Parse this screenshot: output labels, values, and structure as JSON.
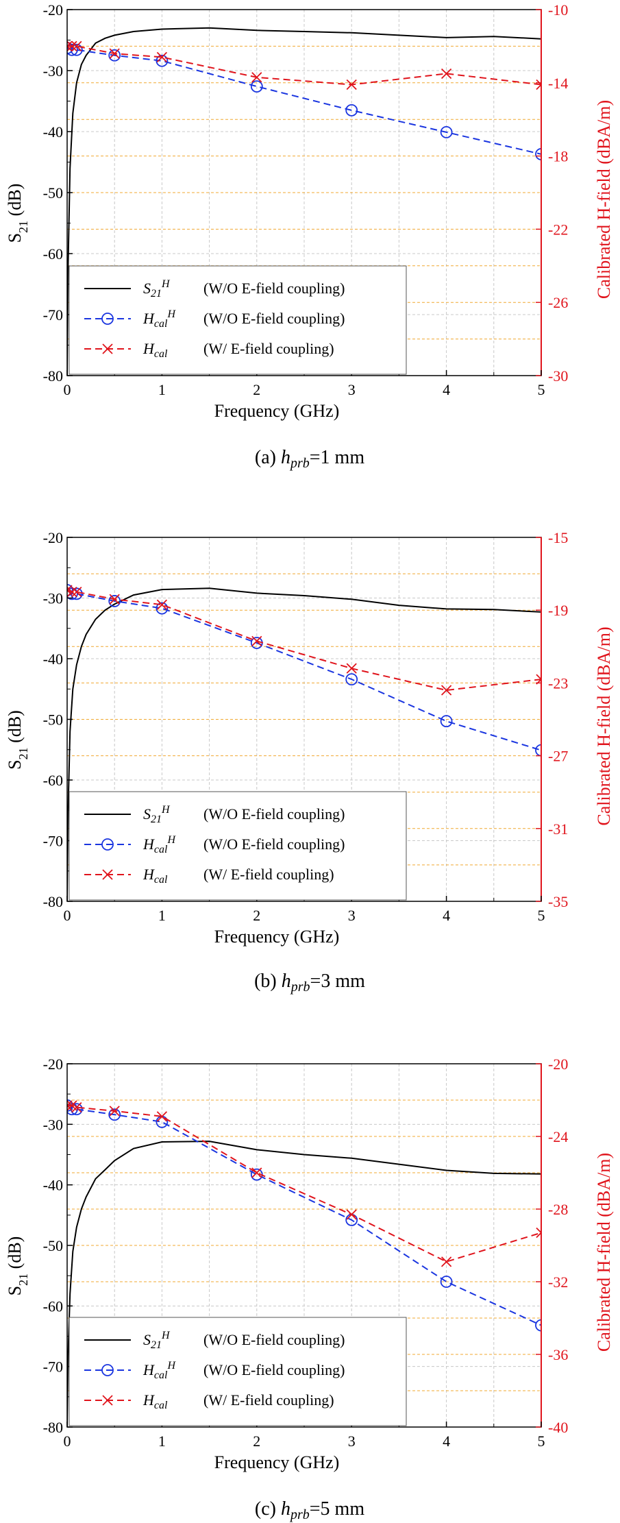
{
  "figure": {
    "axis_x_label": "Frequency (GHz)",
    "axis_y_left_label": "S",
    "axis_y_left_label_sub": "21",
    "axis_y_left_label_unit": " (dB)",
    "axis_y_right_label": "Calibrated H-field (dBA/m)",
    "legend": [
      {
        "sym": "S",
        "sub": "21",
        "sup": "H",
        "desc": "(W/O E-field coupling)",
        "style": "solid",
        "color": "#000000"
      },
      {
        "sym": "H",
        "sub": "cal",
        "sup": "H",
        "desc": "(W/O E-field coupling)",
        "style": "dashed-circle",
        "color": "#1a35e0"
      },
      {
        "sym": "H",
        "sub": "cal",
        "sup": "",
        "desc": "(W/   E-field coupling)",
        "style": "dashed-cross",
        "color": "#e0141c"
      }
    ],
    "colors": {
      "s21": "#000000",
      "hcal_wo": "#1a35e0",
      "hcal_w": "#e0141c",
      "right_axis": "#e0141c",
      "grid": "#c8c8c8",
      "right_grid": "#f0a830"
    }
  },
  "chart_data": [
    {
      "type": "line",
      "caption_prefix": "(a)",
      "caption_var": "h",
      "caption_sub": "prb",
      "caption_value": "=1  mm",
      "x_ticks": [
        "0",
        "1",
        "2",
        "3",
        "4",
        "5"
      ],
      "xlim": [
        0,
        5
      ],
      "ylim_left": [
        -80,
        -20
      ],
      "y_ticks_left": [
        "-20",
        "-30",
        "-40",
        "-50",
        "-60",
        "-70",
        "-80"
      ],
      "ylim_right": [
        -30,
        -10
      ],
      "y_ticks_right": [
        "-10",
        "-14",
        "-18",
        "-22",
        "-26",
        "-30"
      ],
      "series": [
        {
          "name": "S21H (W/O E-field coupling)",
          "axis": "left",
          "x": [
            0.0,
            0.01,
            0.03,
            0.06,
            0.1,
            0.15,
            0.2,
            0.3,
            0.4,
            0.5,
            0.7,
            1.0,
            1.5,
            2.0,
            2.5,
            3.0,
            3.5,
            4.0,
            4.5,
            5.0
          ],
          "y": [
            -80,
            -62,
            -46,
            -37,
            -32,
            -29,
            -27.5,
            -25.5,
            -24.7,
            -24.2,
            -23.6,
            -23.2,
            -23.0,
            -23.4,
            -23.6,
            -23.8,
            -24.2,
            -24.6,
            -24.4,
            -24.8
          ]
        },
        {
          "name": "Hcal H (W/O E-field coupling)",
          "axis": "right",
          "x": [
            0.0,
            0.05,
            0.1,
            0.5,
            1.0,
            2.0,
            3.0,
            4.0,
            5.0
          ],
          "y": [
            -12.1,
            -12.2,
            -12.2,
            -12.5,
            -12.8,
            -14.2,
            -15.5,
            -16.7,
            -17.9
          ]
        },
        {
          "name": "Hcal (W/ E-field coupling)",
          "axis": "right",
          "x": [
            0.0,
            0.05,
            0.1,
            0.5,
            1.0,
            2.0,
            3.0,
            4.0,
            5.0
          ],
          "y": [
            -12.0,
            -12.0,
            -12.0,
            -12.4,
            -12.6,
            -13.7,
            -14.1,
            -13.5,
            -14.1
          ]
        }
      ]
    },
    {
      "type": "line",
      "caption_prefix": "(b)",
      "caption_var": "h",
      "caption_sub": "prb",
      "caption_value": "=3  mm",
      "x_ticks": [
        "0",
        "1",
        "2",
        "3",
        "4",
        "5"
      ],
      "xlim": [
        0,
        5
      ],
      "ylim_left": [
        -80,
        -20
      ],
      "y_ticks_left": [
        "-20",
        "-30",
        "-40",
        "-50",
        "-60",
        "-70",
        "-80"
      ],
      "ylim_right": [
        -35,
        -15
      ],
      "y_ticks_right": [
        "-15",
        "-19",
        "-23",
        "-27",
        "-31",
        "-35"
      ],
      "series": [
        {
          "name": "S21H (W/O E-field coupling)",
          "axis": "left",
          "x": [
            0.0,
            0.01,
            0.03,
            0.06,
            0.1,
            0.15,
            0.2,
            0.3,
            0.4,
            0.5,
            0.7,
            1.0,
            1.5,
            2.0,
            2.5,
            3.0,
            3.5,
            4.0,
            4.5,
            5.0
          ],
          "y": [
            -80,
            -65,
            -52,
            -45,
            -41,
            -38,
            -36,
            -33.5,
            -32,
            -31,
            -29.5,
            -28.6,
            -28.4,
            -29.2,
            -29.6,
            -30.2,
            -31.2,
            -31.8,
            -31.9,
            -32.3
          ]
        },
        {
          "name": "Hcal H (W/O E-field coupling)",
          "axis": "right",
          "x": [
            0.0,
            0.05,
            0.1,
            0.5,
            1.0,
            2.0,
            3.0,
            4.0,
            5.0
          ],
          "y": [
            -17.9,
            -18.1,
            -18.1,
            -18.5,
            -18.9,
            -20.8,
            -22.8,
            -25.1,
            -26.7
          ]
        },
        {
          "name": "Hcal (W/ E-field coupling)",
          "axis": "right",
          "x": [
            0.0,
            0.05,
            0.1,
            0.5,
            1.0,
            2.0,
            3.0,
            4.0,
            5.0
          ],
          "y": [
            -17.9,
            -18.0,
            -18.0,
            -18.4,
            -18.7,
            -20.7,
            -22.2,
            -23.4,
            -22.8
          ]
        }
      ]
    },
    {
      "type": "line",
      "caption_prefix": "(c)",
      "caption_var": "h",
      "caption_sub": "prb",
      "caption_value": "=5  mm",
      "x_ticks": [
        "0",
        "1",
        "2",
        "3",
        "4",
        "5"
      ],
      "xlim": [
        0,
        5
      ],
      "ylim_left": [
        -80,
        -20
      ],
      "y_ticks_left": [
        "-20",
        "-30",
        "-40",
        "-50",
        "-60",
        "-70",
        "-80"
      ],
      "ylim_right": [
        -40,
        -20
      ],
      "y_ticks_right": [
        "-20",
        "-24",
        "-28",
        "-32",
        "-36",
        "-40"
      ],
      "series": [
        {
          "name": "S21H (W/O E-field coupling)",
          "axis": "left",
          "x": [
            0.0,
            0.01,
            0.03,
            0.06,
            0.1,
            0.15,
            0.2,
            0.3,
            0.4,
            0.5,
            0.7,
            1.0,
            1.5,
            2.0,
            2.5,
            3.0,
            3.5,
            4.0,
            4.5,
            5.0
          ],
          "y": [
            -80,
            -68,
            -58,
            -51,
            -47,
            -44,
            -42,
            -39,
            -37.5,
            -36,
            -34,
            -32.9,
            -32.8,
            -34.2,
            -35,
            -35.6,
            -36.6,
            -37.6,
            -38.1,
            -38.2
          ]
        },
        {
          "name": "Hcal H (W/O E-field coupling)",
          "axis": "right",
          "x": [
            0.0,
            0.05,
            0.1,
            0.5,
            1.0,
            2.0,
            3.0,
            4.0,
            5.0
          ],
          "y": [
            -22.3,
            -22.5,
            -22.5,
            -22.8,
            -23.2,
            -26.1,
            -28.6,
            -32.0,
            -34.4
          ]
        },
        {
          "name": "Hcal (W/ E-field coupling)",
          "axis": "right",
          "x": [
            0.0,
            0.05,
            0.1,
            0.5,
            1.0,
            2.0,
            3.0,
            4.0,
            5.0
          ],
          "y": [
            -22.3,
            -22.3,
            -22.4,
            -22.6,
            -22.9,
            -26.0,
            -28.3,
            -30.9,
            -29.3
          ]
        }
      ]
    }
  ]
}
